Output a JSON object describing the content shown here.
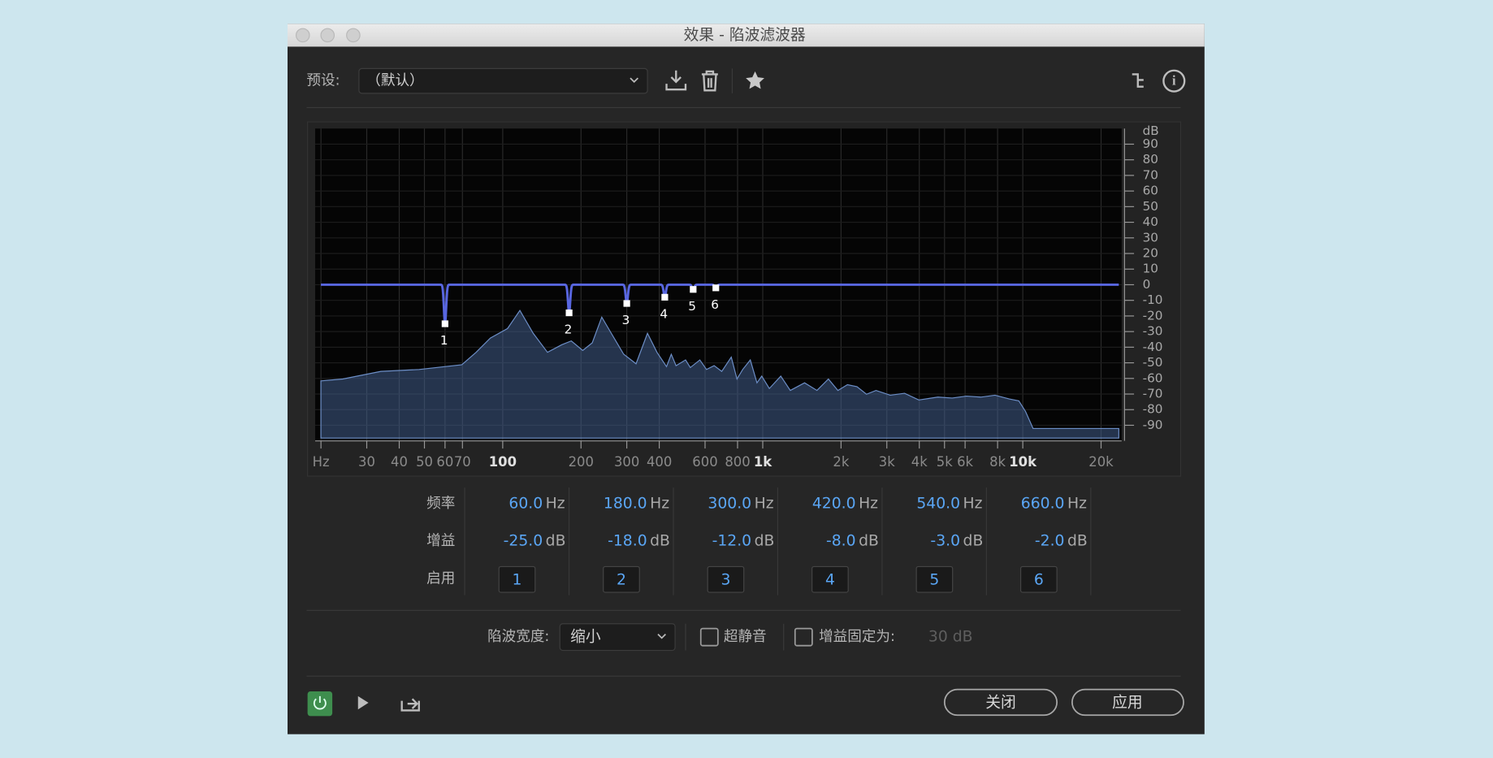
{
  "window": {
    "title": "效果 - 陷波滤波器"
  },
  "preset": {
    "label": "预设:",
    "value": "（默认）"
  },
  "graph": {
    "y_unit": "dB",
    "ylim": [
      -100,
      100
    ],
    "yticks": [
      90,
      80,
      70,
      60,
      50,
      40,
      30,
      20,
      10,
      0,
      -10,
      -20,
      -30,
      -40,
      -50,
      -60,
      -70,
      -80,
      -90
    ],
    "xlim": [
      19,
      24000
    ],
    "xticks": [
      {
        "value": 20,
        "label": "Hz"
      },
      30,
      40,
      50,
      60,
      70,
      100,
      200,
      300,
      400,
      600,
      800,
      {
        "value": 1000,
        "label": "1k"
      },
      {
        "value": 2000,
        "label": "2k"
      },
      {
        "value": 3000,
        "label": "3k"
      },
      {
        "value": 4000,
        "label": "4k"
      },
      {
        "value": 5000,
        "label": "5k"
      },
      {
        "value": 6000,
        "label": "6k"
      },
      {
        "value": 8000,
        "label": "8k"
      },
      {
        "value": 10000,
        "label": "10k"
      },
      {
        "value": 20000,
        "label": "20k"
      }
    ]
  },
  "notches": [
    {
      "label": "1",
      "freq": {
        "value": 60,
        "label": "60.0"
      },
      "gain": {
        "value": -25,
        "label": "-25.0"
      }
    },
    {
      "label": "2",
      "freq": {
        "value": 180,
        "label": "180.0"
      },
      "gain": {
        "value": -18,
        "label": "-18.0"
      }
    },
    {
      "label": "3",
      "freq": {
        "value": 300,
        "label": "300.0"
      },
      "gain": {
        "value": -12,
        "label": "-12.0"
      }
    },
    {
      "label": "4",
      "freq": {
        "value": 420,
        "label": "420.0"
      },
      "gain": {
        "value": -8,
        "label": "-8.0"
      }
    },
    {
      "label": "5",
      "freq": {
        "value": 540,
        "label": "540.0"
      },
      "gain": {
        "value": -3,
        "label": "-3.0"
      }
    },
    {
      "label": "6",
      "freq": {
        "value": 660,
        "label": "660.0"
      },
      "gain": {
        "value": -2,
        "label": "-2.0"
      }
    }
  ],
  "table": {
    "freq_label": "频率",
    "gain_label": "增益",
    "enable_label": "启用",
    "freq_unit": "Hz",
    "gain_unit": "dB"
  },
  "bottom": {
    "width_label": "陷波宽度:",
    "width_value": "缩小",
    "ultra_quiet": "超静音",
    "fixed_gain": "增益固定为:",
    "fixed_gain_value": "30 dB",
    "close": "关闭",
    "apply": "应用"
  }
}
